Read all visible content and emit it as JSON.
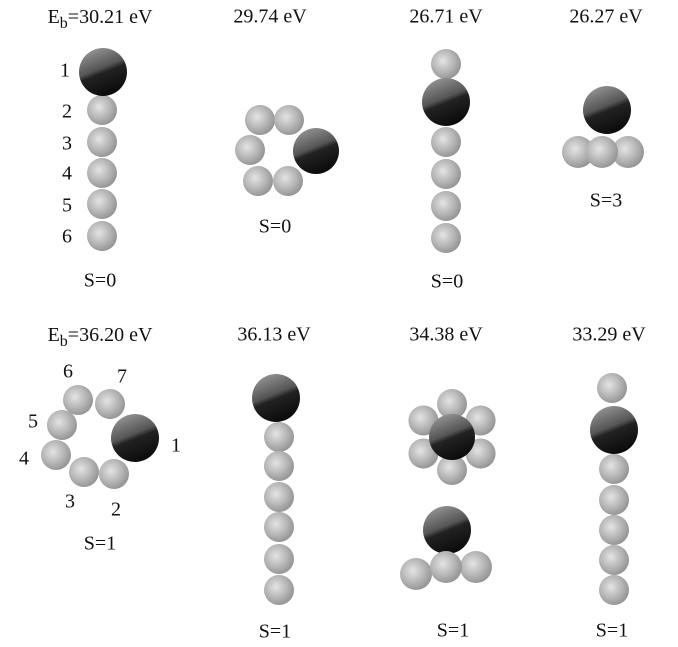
{
  "panels": [
    {
      "energy_prefix": "E",
      "energy_subscript": "b",
      "energy": "=30.21 eV",
      "spin": "S=0",
      "atom_labels": [
        "1",
        "2",
        "3",
        "4",
        "5",
        "6"
      ]
    },
    {
      "energy": "29.74 eV",
      "spin": "S=0"
    },
    {
      "energy": "26.71 eV",
      "spin": "S=0"
    },
    {
      "energy": "26.27 eV",
      "spin": "S=3"
    },
    {
      "energy_prefix": "E",
      "energy_subscript": "b",
      "energy": "=36.20 eV",
      "spin": "S=1",
      "atom_labels": [
        "6",
        "7",
        "5",
        "4",
        "3",
        "2",
        "1"
      ]
    },
    {
      "energy": "36.13 eV",
      "spin": "S=1"
    },
    {
      "energy": "34.38 eV",
      "spin": "S=1"
    },
    {
      "energy": "33.29 eV",
      "spin": "S=1"
    }
  ]
}
